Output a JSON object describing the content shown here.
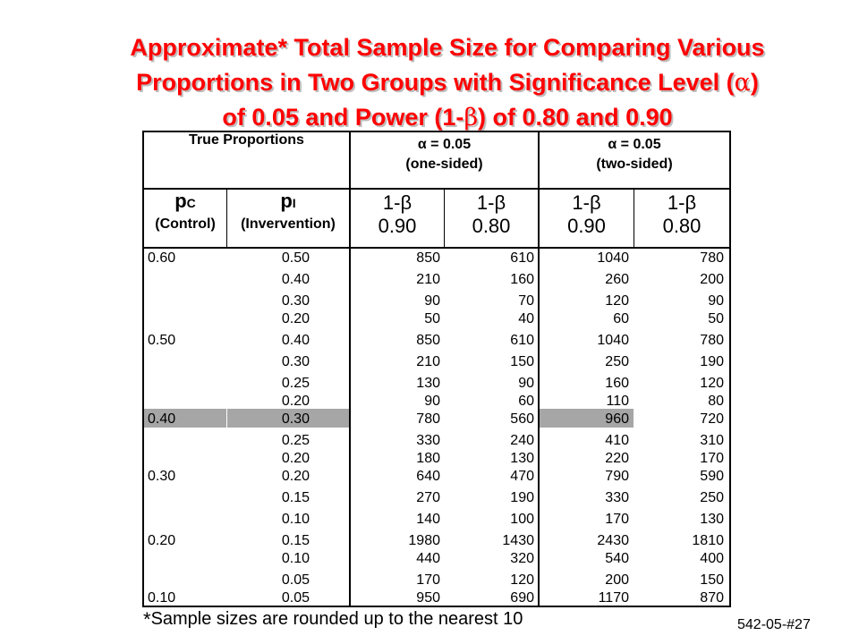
{
  "title": {
    "line1": "Approximate* Total Sample Size for Comparing Various",
    "line2_pre": "Proportions in Two Groups with Significance Level (",
    "line2_sym": "α",
    "line2_post": ")",
    "line3_pre": "of 0.05 and Power (1-",
    "line3_sym": "β",
    "line3_post": ") of 0.80 and 0.90"
  },
  "table": {
    "true_proportions": "True Proportions",
    "one_sided": {
      "alpha": "α = 0.05",
      "label": "(one-sided)"
    },
    "two_sided": {
      "alpha": "α = 0.05",
      "label": "(two-sided)"
    },
    "pc": {
      "symbol": "p",
      "sub": "C",
      "label": "(Control)"
    },
    "pi": {
      "symbol": "p",
      "sub": "I",
      "label": "(Invervention)"
    },
    "power_cols": [
      {
        "top": "1-β",
        "value": "0.90"
      },
      {
        "top": "1-β",
        "value": "0.80"
      },
      {
        "top": "1-β",
        "value": "0.90"
      },
      {
        "top": "1-β",
        "value": "0.80"
      }
    ],
    "rows": [
      {
        "pc": "0.60",
        "pi": "0.50",
        "v": [
          "850",
          "610",
          "1040",
          "780"
        ]
      },
      {
        "pc": "",
        "pi": "0.40",
        "v": [
          "210",
          "160",
          "260",
          "200"
        ]
      },
      {
        "pc": "",
        "pi": "0.30",
        "v": [
          "90",
          "70",
          "120",
          "90"
        ]
      },
      {
        "pc": "",
        "pi": "0.20",
        "v": [
          "50",
          "40",
          "60",
          "50"
        ]
      },
      {
        "pc": "0.50",
        "pi": "0.40",
        "v": [
          "850",
          "610",
          "1040",
          "780"
        ]
      },
      {
        "pc": "",
        "pi": "0.30",
        "v": [
          "210",
          "150",
          "250",
          "190"
        ]
      },
      {
        "pc": "",
        "pi": "0.25",
        "v": [
          "130",
          "90",
          "160",
          "120"
        ]
      },
      {
        "pc": "",
        "pi": "0.20",
        "v": [
          "90",
          "60",
          "110",
          "80"
        ]
      },
      {
        "pc": "0.40",
        "pi": "0.30",
        "v": [
          "780",
          "560",
          "960",
          "720"
        ]
      },
      {
        "pc": "",
        "pi": "0.25",
        "v": [
          "330",
          "240",
          "410",
          "310"
        ]
      },
      {
        "pc": "",
        "pi": "0.20",
        "v": [
          "180",
          "130",
          "220",
          "170"
        ]
      },
      {
        "pc": "0.30",
        "pi": "0.20",
        "v": [
          "640",
          "470",
          "790",
          "590"
        ]
      },
      {
        "pc": "",
        "pi": "0.15",
        "v": [
          "270",
          "190",
          "330",
          "250"
        ]
      },
      {
        "pc": "",
        "pi": "0.10",
        "v": [
          "140",
          "100",
          "170",
          "130"
        ]
      },
      {
        "pc": "0.20",
        "pi": "0.15",
        "v": [
          "1980",
          "1430",
          "2430",
          "1810"
        ]
      },
      {
        "pc": "",
        "pi": "0.10",
        "v": [
          "440",
          "320",
          "540",
          "400"
        ]
      },
      {
        "pc": "",
        "pi": "0.05",
        "v": [
          "170",
          "120",
          "200",
          "150"
        ]
      },
      {
        "pc": "0.10",
        "pi": "0.05",
        "v": [
          "950",
          "690",
          "1170",
          "870"
        ]
      }
    ]
  },
  "footnote": {
    "asterisk": "*",
    "text": "Sample sizes are rounded up to the nearest 10"
  },
  "slide_id": "542-05-#27",
  "colors": {
    "title": "#ff0000",
    "highlight": "#a6a6a6"
  }
}
